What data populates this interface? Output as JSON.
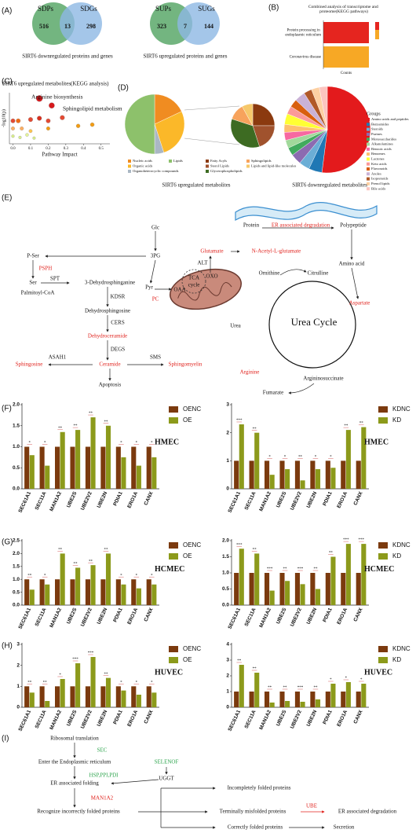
{
  "panels": [
    "(A)",
    "(B)",
    "(C)",
    "(D)",
    "(E)",
    "(F)",
    "(G)",
    "(H)",
    "(I)"
  ],
  "venn": [
    {
      "left": "SDPs",
      "right": "SDGs",
      "left_only": 516,
      "both": 13,
      "right_only": 298,
      "caption": "SIRT6 downregulated proteins and genes"
    },
    {
      "left": "SUPs",
      "right": "SUGs",
      "left_only": 323,
      "both": 7,
      "right_only": 144,
      "caption": "SIRT6 upregulated proteins and genes"
    }
  ],
  "chart_data": [
    {
      "type": "hbar",
      "title": "Combined analysis of transcriptome and proteome(KEGG pathways)",
      "categories": [
        "Protein processing in endoplasmic reticulum",
        "Coronavirus disease"
      ],
      "values": [
        2,
        2
      ],
      "colors": [
        "#e5251f",
        "#f7a825"
      ],
      "xlabel": "Counts",
      "xlim": [
        0,
        2
      ]
    },
    {
      "type": "scatter",
      "title": "SIRT6 upregulated metabolites(KEGG analysis)",
      "xlabel": "Pathway Impact",
      "ylabel": "-log10(p)",
      "x": [
        0.15,
        0.22,
        0,
        0.03,
        0.1,
        0.15,
        0.2,
        0.28,
        0.45,
        0,
        0.05,
        0.1,
        0.2,
        0.37,
        0,
        0.04,
        0.08,
        0.12
      ],
      "values": [
        3.55,
        3.0,
        1.8,
        1.8,
        1.9,
        2.0,
        1.8,
        2.05,
        1.5,
        1.2,
        1.2,
        1.0,
        1.2,
        1.4,
        0.6,
        0.5,
        0.7,
        0.45
      ],
      "colors": [
        "#d7191c",
        "#d7191c",
        "#e34a33",
        "#f16913",
        "#e34a33",
        "#d7301f",
        "#e34a33",
        "#e34a33",
        "#f39c12",
        "#fdae61",
        "#fdae61",
        "#fec44f",
        "#f39c12",
        "#f39c12",
        "#d9ef8b",
        "#d9ef8b",
        "#e6f598",
        "#d9ef8b"
      ],
      "xlim": [
        -0.02,
        0.55
      ],
      "xticks": [
        {
          "value": 0,
          "label": "0.0"
        },
        0.1,
        0.2,
        0.3,
        0.4,
        0.5
      ],
      "ylim": [
        0,
        4
      ],
      "annotations": [
        "Arginine biosynthesis",
        "Sphingolipid metabolism"
      ]
    },
    {
      "type": "pie",
      "caption": "SIRT6 upregulated metabolites",
      "categories": [
        "Nucleic acids",
        "Organic acids",
        "Organoheterocyclic compounds",
        "Lipids"
      ],
      "values": [
        18,
        27,
        5,
        50
      ],
      "colors": [
        "#f08c21",
        "#fbb829",
        "#aab7c4",
        "#8dc16b"
      ]
    },
    {
      "type": "pie",
      "categories": [
        "Fatty Acyls",
        "Sterol Lipids",
        "Glycerophospholipids",
        "Sphingolipids",
        "Lipids and lipid-like molecules"
      ],
      "values": [
        25,
        20,
        35,
        12,
        8
      ],
      "colors": [
        "#8b3a0f",
        "#a0522d",
        "#3d6b22",
        "#f7a35c",
        "#f6c86a"
      ]
    },
    {
      "type": "pie",
      "caption": "SIRT6 downregulated metabolites",
      "legend_title": "Groups",
      "categories": [
        "Amino acids and peptides",
        "Benzamides",
        "Steroids",
        "Purines",
        "Monosaccharides",
        "Alkanolamines",
        "Benzoic acids",
        "Benzenes",
        "Lactones",
        "Keto acids",
        "Flavonoids",
        "Azoles",
        "Isoprenoids",
        "Prenol lipids",
        "Bile acids"
      ],
      "values": [
        52,
        5,
        4,
        4,
        3,
        3,
        3,
        3,
        4,
        3,
        3,
        4,
        3,
        3,
        3
      ],
      "colors": [
        "#e31a1c",
        "#1f78b4",
        "#6baed6",
        "#8c6bb1",
        "#41ab5d",
        "#a1d99b",
        "#f768a1",
        "#fdbf6f",
        "#ffff33",
        "#fb9a99",
        "#d95f0e",
        "#cab2d6",
        "#b15928",
        "#fdd0a2",
        "#fcc5c0"
      ]
    },
    {
      "type": "grouped_bar",
      "cell": "HMEC",
      "categories": [
        "SEC61A1",
        "SEC11A",
        "MAN1A2",
        "UBE2S",
        "UBE2V2",
        "UBE2N",
        "PDIA1",
        "ERO1A",
        "CANX"
      ],
      "series": [
        {
          "name": "OENC",
          "color": "#7b3a0e",
          "values": [
            1,
            1,
            1,
            1,
            1,
            1,
            1,
            1,
            1
          ]
        },
        {
          "name": "OE",
          "color": "#8c9a1b",
          "values": [
            0.8,
            0.55,
            1.35,
            1.4,
            1.7,
            1.5,
            0.75,
            0.55,
            0.75
          ]
        }
      ],
      "ylim": [
        0,
        2
      ],
      "yticks": [
        {
          "value": 0,
          "label": "0.0"
        },
        0.5,
        {
          "value": 1,
          "label": "1.0"
        },
        1.5,
        {
          "value": 2,
          "label": "2.0"
        }
      ],
      "significance": [
        "*",
        "*",
        "**",
        "**",
        "**",
        "**",
        "*",
        "*",
        "*"
      ]
    },
    {
      "type": "grouped_bar",
      "cell": "HMEC",
      "categories": [
        "SEC61A1",
        "SEC11A",
        "MAN1A2",
        "UBE2S",
        "UBE2V2",
        "UBE2N",
        "PDIA1",
        "ERO1A",
        "CANX"
      ],
      "series": [
        {
          "name": "KDNC",
          "color": "#7b3a0e",
          "values": [
            1,
            1,
            1,
            1,
            1,
            1,
            1,
            1,
            1
          ]
        },
        {
          "name": "KD",
          "color": "#8c9a1b",
          "values": [
            2.3,
            2.0,
            0.5,
            0.7,
            0.3,
            0.7,
            0.75,
            2.1,
            2.2
          ]
        }
      ],
      "ylim": [
        0,
        3
      ],
      "yticks": [
        0,
        1,
        2,
        3
      ],
      "significance": [
        "***",
        "**",
        "*",
        "*",
        "**",
        "*",
        "*",
        "**",
        "**"
      ]
    },
    {
      "type": "grouped_bar",
      "cell": "HCMEC",
      "categories": [
        "SEC61A1",
        "SEC11A",
        "MAN1A2",
        "UBE2S",
        "UBE2V2",
        "UBE2N",
        "PDIA1",
        "ERO1A",
        "CANX"
      ],
      "series": [
        {
          "name": "OENC",
          "color": "#7b3a0e",
          "values": [
            1,
            1,
            1,
            1,
            1,
            1,
            1,
            1,
            1
          ]
        },
        {
          "name": "OE",
          "color": "#8c9a1b",
          "values": [
            0.6,
            0.8,
            2.0,
            1.45,
            1.55,
            2.0,
            0.8,
            0.65,
            0.8
          ]
        }
      ],
      "ylim": [
        0,
        2.5
      ],
      "yticks": [
        {
          "value": 0,
          "label": "0.0"
        },
        0.5,
        {
          "value": 1,
          "label": "1.0"
        },
        1.5,
        {
          "value": 2,
          "label": "2.0"
        },
        2.5
      ],
      "significance": [
        "**",
        "*",
        "**",
        "**",
        "**",
        "**",
        "*",
        "*",
        "*"
      ]
    },
    {
      "type": "grouped_bar",
      "cell": "HCMEC",
      "categories": [
        "SEC61A1",
        "SEC11A",
        "MAN1A2",
        "UBE2S",
        "UBE2V2",
        "UBE2N",
        "PDIA1",
        "ERO1A",
        "CANX"
      ],
      "series": [
        {
          "name": "KDNC",
          "color": "#7b3a0e",
          "values": [
            1,
            1,
            1,
            1,
            1,
            1,
            1,
            1,
            1
          ]
        },
        {
          "name": "KD",
          "color": "#8c9a1b",
          "values": [
            1.75,
            1.6,
            0.45,
            0.75,
            0.65,
            0.5,
            1.5,
            1.9,
            1.9
          ]
        }
      ],
      "ylim": [
        0,
        2
      ],
      "yticks": [
        {
          "value": 0,
          "label": "0.0"
        },
        0.5,
        {
          "value": 1,
          "label": "1.0"
        },
        1.5,
        {
          "value": 2,
          "label": "2.0"
        }
      ],
      "significance": [
        "***",
        "**",
        "***",
        "**",
        "***",
        "**",
        "**",
        "***",
        "***"
      ]
    },
    {
      "type": "grouped_bar",
      "cell": "HUVEC",
      "categories": [
        "SEC61A1",
        "SEC11A",
        "MAN1A2",
        "UBE2S",
        "UBE2V2",
        "UBE2N",
        "PDIA1",
        "ERO1A",
        "CANX"
      ],
      "series": [
        {
          "name": "OENC",
          "color": "#7b3a0e",
          "values": [
            1,
            1,
            1,
            1,
            1,
            1,
            1,
            1,
            1
          ]
        },
        {
          "name": "OE",
          "color": "#8c9a1b",
          "values": [
            0.7,
            0.3,
            1.35,
            2.1,
            2.4,
            1.4,
            0.8,
            0.6,
            0.7
          ]
        }
      ],
      "ylim": [
        0,
        3
      ],
      "yticks": [
        0,
        1,
        2,
        3
      ],
      "significance": [
        "**",
        "**",
        "*",
        "***",
        "***",
        "**",
        "*",
        "*",
        "*"
      ]
    },
    {
      "type": "grouped_bar",
      "cell": "HUVEC",
      "categories": [
        "SEC61A1",
        "SEC11A",
        "MAN1A2",
        "UBE2S",
        "UBE2V2",
        "UBE2N",
        "PDIA1",
        "ERO1A",
        "CANX"
      ],
      "series": [
        {
          "name": "KDNC",
          "color": "#7b3a0e",
          "values": [
            1,
            1,
            1,
            1,
            1,
            1,
            1,
            1,
            1
          ]
        },
        {
          "name": "KD",
          "color": "#8c9a1b",
          "values": [
            2.7,
            2.2,
            0.3,
            0.4,
            0.35,
            0.5,
            1.5,
            1.6,
            1.5
          ]
        }
      ],
      "ylim": [
        0,
        4
      ],
      "yticks": [
        0,
        1,
        2,
        3,
        4
      ],
      "significance": [
        "**",
        "**",
        "**",
        "**",
        "***",
        "**",
        "*",
        "*",
        "*"
      ]
    }
  ],
  "pathway": [
    "Glc",
    "3PG",
    "P-Ser",
    "PSPH",
    "Ser",
    "SPT",
    "Palmitoyl-CoA",
    "3-Dehydrosphinganine",
    "KDSR",
    "Dehydrosphingosine",
    "CERS",
    "Dehydroceramide",
    "DEGS",
    "ASAH1",
    "SMS",
    "Sphingosine",
    "Ceramide",
    "Sphingomyelin",
    "Apoptosis",
    "Pyr",
    "PC",
    "OAA",
    "TCA",
    "cycle",
    "OXO",
    "ALT",
    "Glutamate",
    "N-Acetyl-L-glutamate",
    "Protein",
    "ER associated degradation",
    "Polypeptide",
    "Amino acid",
    "Ornithine",
    "Citrulline",
    "Urea Cycle",
    "Aspartate",
    "Urea",
    "Arginine",
    "Argininosuccinate",
    "Fumarate"
  ],
  "folding": [
    "Ribosomal translation",
    "SEC",
    "Enter the Endoplasmic reticulum",
    "HSP,PPI,PDI",
    "SELENOF",
    "UGGT",
    "ER associated folding",
    "MAN1A2",
    "Recognize incorrectly folded proteins",
    "Incompletely folded proteins",
    "Terminally misfolded proteins",
    "UBE",
    "ER associated degradation",
    "Correctly folded proteins",
    "Secretion"
  ]
}
